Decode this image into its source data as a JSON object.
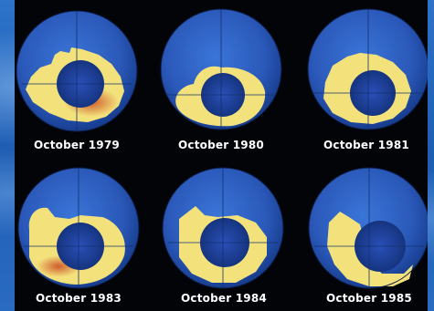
{
  "captions": [
    "October 1979",
    "October 1980",
    "October 1981",
    "October 1983",
    "October 1984",
    "October 1985"
  ],
  "colors": {
    "background": "#1f5db3",
    "panel": "#020408",
    "ocean": "#2f63c4",
    "ozone_band": "#f3e27c",
    "ozone_low": "#d9752f",
    "hole": "#1b3fa0",
    "caption": "#ffffff"
  }
}
